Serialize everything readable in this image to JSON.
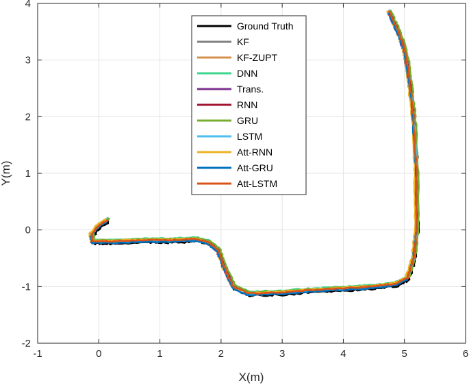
{
  "chart_data": {
    "type": "line",
    "title": "",
    "xlabel": "X(m)",
    "ylabel": "Y(m)",
    "xlim": [
      -1,
      6
    ],
    "ylim": [
      -2,
      4
    ],
    "xticks": [
      "-1",
      "0",
      "1",
      "2",
      "3",
      "4",
      "5",
      "6"
    ],
    "yticks": [
      "-2",
      "-1",
      "0",
      "1",
      "2",
      "3",
      "4"
    ],
    "grid": true,
    "legend_position": "top-center",
    "base_path": {
      "x": [
        0.15,
        0.0,
        -0.12,
        -0.1,
        0.2,
        0.8,
        1.2,
        1.6,
        1.8,
        1.95,
        2.05,
        2.2,
        2.45,
        3.0,
        3.5,
        4.0,
        4.5,
        4.85,
        5.05,
        5.15,
        5.2,
        5.2,
        5.15,
        5.1,
        5.05,
        5.0,
        4.9,
        4.75
      ],
      "y": [
        0.18,
        0.08,
        -0.08,
        -0.2,
        -0.2,
        -0.18,
        -0.18,
        -0.16,
        -0.22,
        -0.35,
        -0.65,
        -1.0,
        -1.12,
        -1.1,
        -1.06,
        -1.03,
        -1.0,
        -0.95,
        -0.85,
        -0.5,
        0.0,
        1.0,
        2.0,
        2.5,
        2.9,
        3.2,
        3.5,
        3.85
      ]
    },
    "series": [
      {
        "name": "Ground Truth",
        "color": "#000000",
        "dx": 0.02,
        "dy": -0.04
      },
      {
        "name": "KF",
        "color": "#808080",
        "dx": 0.0,
        "dy": 0.02
      },
      {
        "name": "KF-ZUPT",
        "color": "#D4914E",
        "dx": -0.01,
        "dy": 0.01
      },
      {
        "name": "DNN",
        "color": "#3DD68C",
        "dx": 0.01,
        "dy": 0.03
      },
      {
        "name": "Trans.",
        "color": "#7E2F8E",
        "dx": -0.02,
        "dy": -0.02
      },
      {
        "name": "RNN",
        "color": "#A2142F",
        "dx": 0.015,
        "dy": 0.0
      },
      {
        "name": "GRU",
        "color": "#77AC30",
        "dx": 0.03,
        "dy": 0.02
      },
      {
        "name": "LSTM",
        "color": "#4DBEEE",
        "dx": 0.0,
        "dy": -0.01
      },
      {
        "name": "Att-RNN",
        "color": "#EDB120",
        "dx": -0.03,
        "dy": 0.01
      },
      {
        "name": "Att-GRU",
        "color": "#0072BD",
        "dx": -0.01,
        "dy": -0.03
      },
      {
        "name": "Att-LSTM",
        "color": "#D95319",
        "dx": 0.0,
        "dy": 0.0
      }
    ]
  }
}
